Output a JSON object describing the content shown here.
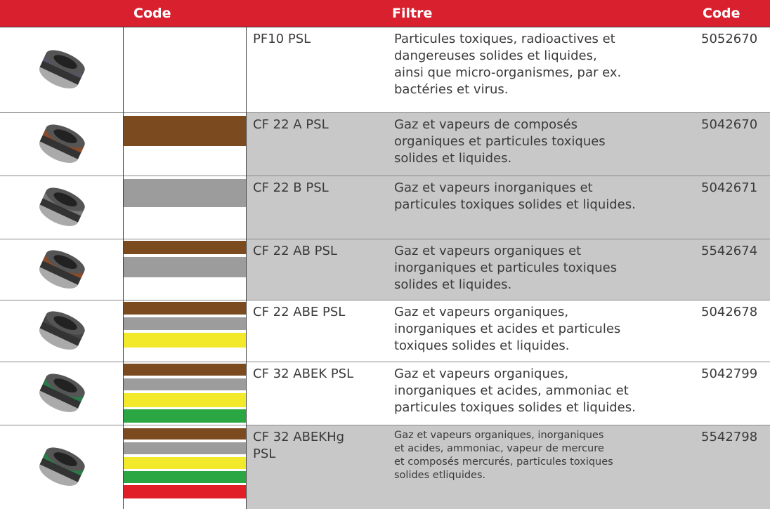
{
  "header": {
    "columns": [
      "Code",
      "Filtre",
      "Code"
    ]
  },
  "table": {
    "rows": [
      {
        "name": [
          "PF10 PSL"
        ],
        "description": [
          "Particules toxiques, radioactives et",
          "dangereuses solides et liquides,",
          "ainsi que micro-organismes, par ex.",
          "bactéries et virus."
        ],
        "code": "5052670"
      },
      {
        "name": [
          "CF 22 A PSL"
        ],
        "description": [
          "Gaz et vapeurs de composés",
          "organiques et particules toxiques",
          "solides et liquides."
        ],
        "code": "5042670"
      },
      {
        "name": [
          "CF 22 B PSL"
        ],
        "description": [
          "Gaz et vapeurs inorganiques et",
          "particules toxiques solides et liquides."
        ],
        "code": "5042671"
      },
      {
        "name": [
          "CF 22 AB PSL"
        ],
        "description": [
          "Gaz et vapeurs organiques et",
          "inorganiques et particules toxiques",
          "solides et liquides."
        ],
        "code": "5542674"
      },
      {
        "name": [
          "CF 22 ABE PSL"
        ],
        "description": [
          "Gaz et vapeurs organiques,",
          "inorganiques et acides et particules",
          "toxiques solides et liquides."
        ],
        "code": "5042678"
      },
      {
        "name": [
          "CF 32 ABEK PSL"
        ],
        "description": [
          "Gaz et vapeurs organiques,",
          "inorganiques et acides, ammoniac et",
          "particules toxiques solides et liquides."
        ],
        "code": "5042799"
      },
      {
        "name": [
          "CF 32 ABEKHg",
          "PSL"
        ],
        "description": [
          "Gaz et vapeurs organiques, inorganiques",
          "et acides, ammoniac, vapeur de mercure",
          "et composés mercurés, particules toxiques",
          "solides etliquides."
        ],
        "code": "5542798"
      }
    ]
  }
}
